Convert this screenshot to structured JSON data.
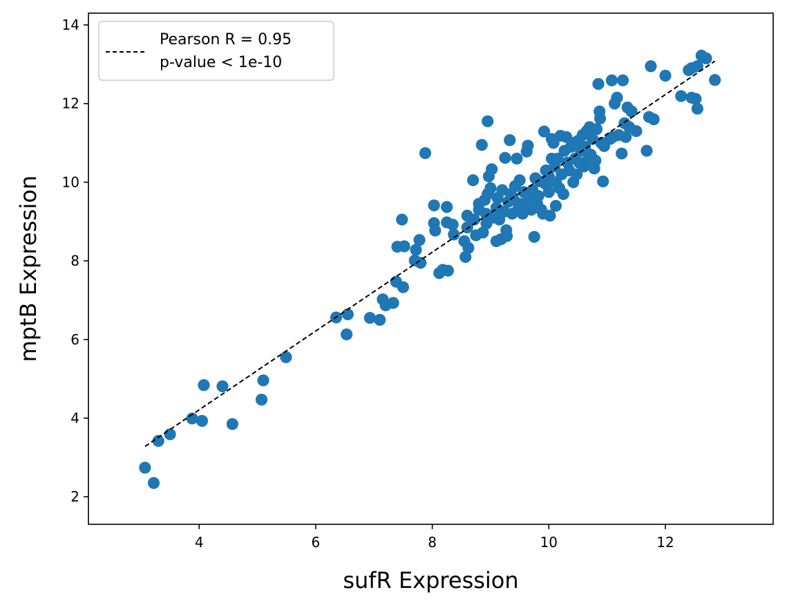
{
  "chart_data": {
    "type": "scatter",
    "xlabel": "sufR Expression",
    "ylabel": "mptB Expression",
    "xlim": [
      2.1,
      13.85
    ],
    "ylim": [
      1.3,
      14.3
    ],
    "xticks": [
      4,
      6,
      8,
      10,
      12
    ],
    "yticks": [
      2,
      4,
      6,
      8,
      10,
      12,
      14
    ],
    "grid": false,
    "legend": {
      "position": "top-left",
      "entry": "Pearson R = 0.95",
      "entry_line2": "p-value < 1e-10"
    },
    "colors": {
      "points": "#1f77b4",
      "fit_line": "#000000",
      "axes": "#000000"
    },
    "fit_line": {
      "x": [
        3.07,
        12.85
      ],
      "y": [
        3.28,
        13.08
      ],
      "style": "dashed"
    },
    "points": [
      [
        3.07,
        2.74
      ],
      [
        3.22,
        2.35
      ],
      [
        3.3,
        3.42
      ],
      [
        3.5,
        3.59
      ],
      [
        3.88,
        3.99
      ],
      [
        4.05,
        3.93
      ],
      [
        4.08,
        4.84
      ],
      [
        4.4,
        4.81
      ],
      [
        4.57,
        3.85
      ],
      [
        5.07,
        4.47
      ],
      [
        5.1,
        4.96
      ],
      [
        5.49,
        5.55
      ],
      [
        6.35,
        6.56
      ],
      [
        6.53,
        6.13
      ],
      [
        6.55,
        6.64
      ],
      [
        6.93,
        6.55
      ],
      [
        7.1,
        6.5
      ],
      [
        7.15,
        7.02
      ],
      [
        7.2,
        6.87
      ],
      [
        7.33,
        6.93
      ],
      [
        7.38,
        7.47
      ],
      [
        7.5,
        7.33
      ],
      [
        7.4,
        8.36
      ],
      [
        7.52,
        8.37
      ],
      [
        7.48,
        9.05
      ],
      [
        7.7,
        8.01
      ],
      [
        7.8,
        7.95
      ],
      [
        7.78,
        8.53
      ],
      [
        7.72,
        8.28
      ],
      [
        7.88,
        10.74
      ],
      [
        8.03,
        9.41
      ],
      [
        8.03,
        8.96
      ],
      [
        8.05,
        8.77
      ],
      [
        8.12,
        7.69
      ],
      [
        8.18,
        7.77
      ],
      [
        8.27,
        7.75
      ],
      [
        8.25,
        8.98
      ],
      [
        8.25,
        9.37
      ],
      [
        8.35,
        8.92
      ],
      [
        8.37,
        8.67
      ],
      [
        8.55,
        8.5
      ],
      [
        8.57,
        8.1
      ],
      [
        8.62,
        8.33
      ],
      [
        8.6,
        9.15
      ],
      [
        8.6,
        8.85
      ],
      [
        8.7,
        10.05
      ],
      [
        8.72,
        9.05
      ],
      [
        8.75,
        8.65
      ],
      [
        8.8,
        9.3
      ],
      [
        8.8,
        9.45
      ],
      [
        8.85,
        10.95
      ],
      [
        8.87,
        8.72
      ],
      [
        8.9,
        9.55
      ],
      [
        8.92,
        9.2
      ],
      [
        8.93,
        8.95
      ],
      [
        8.95,
        11.55
      ],
      [
        8.95,
        9.7
      ],
      [
        8.97,
        10.15
      ],
      [
        9.0,
        9.85
      ],
      [
        9.02,
        10.33
      ],
      [
        9.05,
        9.1
      ],
      [
        9.1,
        9.35
      ],
      [
        9.1,
        8.5
      ],
      [
        9.12,
        9.6
      ],
      [
        9.15,
        9.05
      ],
      [
        9.18,
        8.55
      ],
      [
        9.2,
        9.8
      ],
      [
        9.23,
        9.25
      ],
      [
        9.25,
        10.62
      ],
      [
        9.27,
        8.78
      ],
      [
        9.28,
        8.63
      ],
      [
        9.3,
        9.5
      ],
      [
        9.33,
        11.07
      ],
      [
        9.35,
        9.7
      ],
      [
        9.37,
        9.2
      ],
      [
        9.4,
        9.55
      ],
      [
        9.42,
        9.9
      ],
      [
        9.45,
        10.6
      ],
      [
        9.47,
        9.3
      ],
      [
        9.5,
        10.05
      ],
      [
        9.52,
        9.45
      ],
      [
        9.55,
        9.2
      ],
      [
        9.57,
        9.75
      ],
      [
        9.6,
        9.35
      ],
      [
        9.62,
        10.78
      ],
      [
        9.64,
        10.93
      ],
      [
        9.66,
        9.6
      ],
      [
        9.7,
        9.3
      ],
      [
        9.72,
        9.8
      ],
      [
        9.75,
        8.61
      ],
      [
        9.77,
        10.1
      ],
      [
        9.8,
        9.45
      ],
      [
        9.82,
        9.65
      ],
      [
        9.85,
        10.02
      ],
      [
        9.87,
        9.3
      ],
      [
        9.9,
        9.2
      ],
      [
        9.92,
        11.29
      ],
      [
        9.95,
        10.3
      ],
      [
        9.95,
        9.95
      ],
      [
        10.0,
        10.15
      ],
      [
        10.0,
        9.75
      ],
      [
        10.02,
        9.15
      ],
      [
        10.05,
        10.6
      ],
      [
        10.05,
        11.1
      ],
      [
        10.08,
        11.0
      ],
      [
        10.1,
        10.4
      ],
      [
        10.12,
        9.4
      ],
      [
        10.12,
        10.0
      ],
      [
        10.15,
        10.6
      ],
      [
        10.18,
        9.85
      ],
      [
        10.2,
        11.18
      ],
      [
        10.22,
        10.2
      ],
      [
        10.25,
        9.7
      ],
      [
        10.27,
        10.8
      ],
      [
        10.3,
        11.15
      ],
      [
        10.32,
        10.5
      ],
      [
        10.35,
        10.3
      ],
      [
        10.38,
        10.9
      ],
      [
        10.4,
        11.0
      ],
      [
        10.42,
        10.0
      ],
      [
        10.45,
        10.6
      ],
      [
        10.48,
        10.2
      ],
      [
        10.5,
        11.05
      ],
      [
        10.52,
        10.5
      ],
      [
        10.55,
        10.8
      ],
      [
        10.58,
        11.2
      ],
      [
        10.6,
        10.4
      ],
      [
        10.62,
        10.9
      ],
      [
        10.65,
        11.3
      ],
      [
        10.68,
        10.6
      ],
      [
        10.7,
        11.4
      ],
      [
        10.72,
        10.7
      ],
      [
        10.75,
        11.1
      ],
      [
        10.78,
        10.35
      ],
      [
        10.8,
        10.55
      ],
      [
        10.82,
        11.35
      ],
      [
        10.85,
        12.5
      ],
      [
        10.87,
        11.8
      ],
      [
        10.88,
        11.62
      ],
      [
        10.9,
        11.0
      ],
      [
        10.93,
        10.02
      ],
      [
        10.95,
        10.92
      ],
      [
        11.05,
        11.1
      ],
      [
        11.08,
        12.59
      ],
      [
        11.1,
        11.15
      ],
      [
        11.13,
        12.0
      ],
      [
        11.17,
        12.15
      ],
      [
        11.2,
        11.2
      ],
      [
        11.25,
        10.73
      ],
      [
        11.27,
        12.59
      ],
      [
        11.3,
        11.5
      ],
      [
        11.32,
        11.15
      ],
      [
        11.35,
        11.9
      ],
      [
        11.38,
        11.4
      ],
      [
        11.42,
        11.8
      ],
      [
        11.5,
        11.3
      ],
      [
        11.68,
        10.8
      ],
      [
        11.72,
        11.66
      ],
      [
        11.75,
        12.95
      ],
      [
        11.8,
        11.6
      ],
      [
        12.0,
        12.71
      ],
      [
        12.27,
        12.19
      ],
      [
        12.4,
        12.85
      ],
      [
        12.45,
        12.9
      ],
      [
        12.45,
        12.15
      ],
      [
        12.52,
        12.12
      ],
      [
        12.55,
        11.87
      ],
      [
        12.55,
        12.95
      ],
      [
        12.62,
        13.22
      ],
      [
        12.7,
        13.15
      ],
      [
        12.85,
        12.6
      ]
    ]
  }
}
